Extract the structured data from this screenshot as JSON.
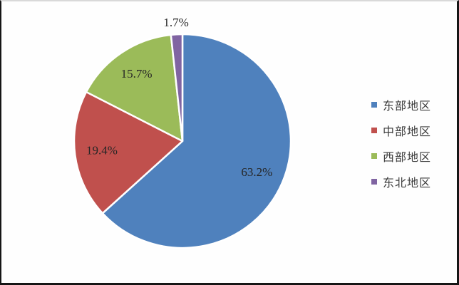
{
  "chart_data": {
    "type": "pie",
    "categories": [
      "东部地区",
      "中部地区",
      "西部地区",
      "东北地区"
    ],
    "values": [
      63.2,
      19.4,
      15.7,
      1.7
    ],
    "data_labels": [
      "63.2%",
      "19.4%",
      "15.7%",
      "1.7%"
    ],
    "colors": [
      "#4F81BD",
      "#C0504D",
      "#9BBB59",
      "#8064A2"
    ],
    "title": "",
    "legend_position": "right",
    "start_angle_deg": 0,
    "direction": "clockwise",
    "slice_border_color": "#FFFFFF",
    "label_color": "#262626",
    "legend_text_color": "#3d3d3d",
    "small_slice_label_outside_threshold_pct": 5
  }
}
